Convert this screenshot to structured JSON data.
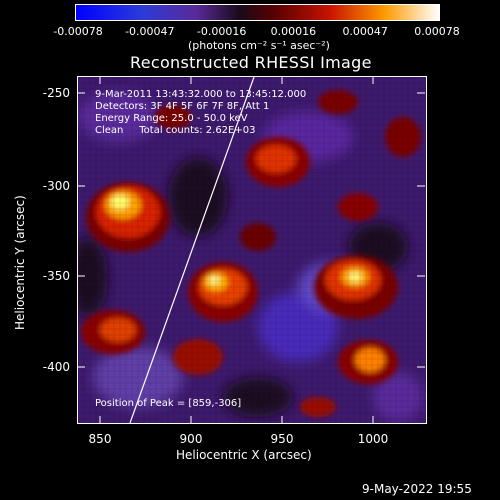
{
  "colorbar": {
    "ticks": [
      "-0.00078",
      "-0.00047",
      "-0.00016",
      "0.00016",
      "0.00047",
      "0.00078"
    ],
    "units": "(photons cm⁻² s⁻¹ asec⁻²)"
  },
  "title": "Reconstructed RHESSI Image",
  "overlay": {
    "time_range": "9-Mar-2011 13:43:32.000 to 13:45:12.000",
    "detectors": "Detectors: 3F 4F 5F 6F 7F 8F, Att 1",
    "energy": "Energy Range: 25.0 - 50.0 keV",
    "clean": "Clean     Total counts: 2.62E+03",
    "peak": "Position of Peak = [859,-306]"
  },
  "axes": {
    "xlabel": "Heliocentric X (arcsec)",
    "ylabel": "Heliocentric Y (arcsec)",
    "xticks": [
      "850",
      "900",
      "950",
      "1000"
    ],
    "yticks": [
      "-250",
      "-300",
      "-350",
      "-400"
    ]
  },
  "footer": {
    "date": "9-May-2022 19:55"
  }
}
